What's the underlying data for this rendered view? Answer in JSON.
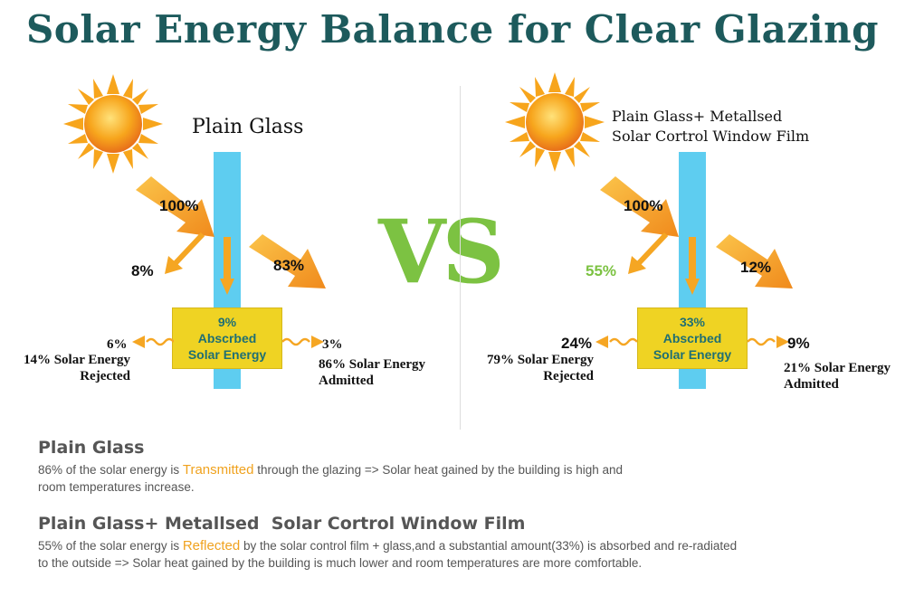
{
  "title": "Solar Energy Balance for Clear Glazing",
  "vs": "VS",
  "left": {
    "panel_title": "Plain Glass",
    "incident": "100%",
    "reflected": "8%",
    "transmitted": "83%",
    "box_pct": "9%",
    "box_line1": "Abscrbed",
    "box_line2": "Solar Energy",
    "reradiated_out": "6%",
    "reradiated_in": "3%",
    "rejected_line1": "14% Solar Energy",
    "rejected_line2": "Rejected",
    "admitted_line1": "86% Solar Energy",
    "admitted_line2": "Admitted"
  },
  "right": {
    "panel_title_line1": "Plain Glass+ Metallsed",
    "panel_title_line2": "Solar Cortrol Window Film",
    "incident": "100%",
    "reflected": "55%",
    "transmitted": "12%",
    "box_pct": "33%",
    "box_line1": "Abscrbed",
    "box_line2": "Solar Energy",
    "reradiated_out": "24%",
    "reradiated_in": "9%",
    "rejected_line1": "79% Solar Energy",
    "rejected_line2": "Rejected",
    "admitted_line1": "21% Solar Energy",
    "admitted_line2": "Admitted"
  },
  "sections": [
    {
      "heading": "Plain Glass",
      "body_pre": "86% of the solar energy is ",
      "body_highlight": "Transmitted",
      "body_post_line1": " through the glazing => Solar heat gained by the building is high and",
      "body_line2": "room temperatures increase."
    },
    {
      "heading": "Plain Glass+ Metallsed  Solar Cortrol Window Film",
      "body_pre": "55% of the solar energy is ",
      "body_highlight": "Reflected",
      "body_post_line1": " by the solar control film + glass,and a substantial amount(33%) is absorbed and re-radiated",
      "body_line2": "to the outside => Solar heat gained by the building is much lower and room temperatures are more comfortable."
    }
  ],
  "colors": {
    "title": "#1d5a5c",
    "glass": "#5ecdf0",
    "arrow": "#f5a623",
    "box": "#efd323",
    "box_text": "#1f6f73",
    "vs": "#7cc242",
    "highlight": "#f0a21e",
    "reflected_right": "#7cc242"
  }
}
